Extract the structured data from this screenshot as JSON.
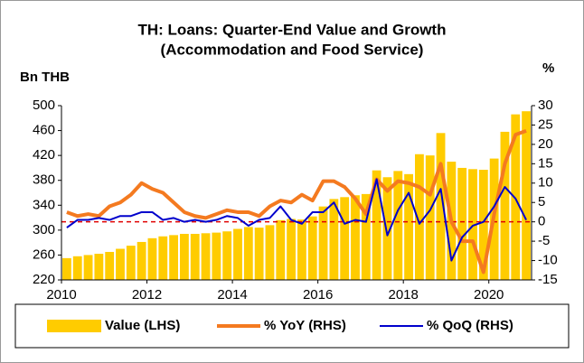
{
  "chart_data": {
    "type": "bar_line_combo",
    "title": [
      "TH: Loans: Quarter-End Value and Growth",
      "(Accommodation and Food Service)"
    ],
    "ylabel": "Bn THB",
    "y2label": "%",
    "x": [
      2010,
      2010.25,
      2010.5,
      2010.75,
      2011,
      2011.25,
      2011.5,
      2011.75,
      2012,
      2012.25,
      2012.5,
      2012.75,
      2013,
      2013.25,
      2013.5,
      2013.75,
      2014,
      2014.25,
      2014.5,
      2014.75,
      2015,
      2015.25,
      2015.5,
      2015.75,
      2016,
      2016.25,
      2016.5,
      2016.75,
      2017,
      2017.25,
      2017.5,
      2017.75,
      2018,
      2018.25,
      2018.5,
      2018.75,
      2019,
      2019.25,
      2019.5,
      2019.75,
      2020,
      2020.25,
      2020.5,
      2020.75
    ],
    "series": [
      {
        "name": "Value (LHS)",
        "kind": "bar",
        "axis": "y",
        "color": "#ffcc00",
        "values": [
          255,
          258,
          260,
          262,
          265,
          270,
          275,
          281,
          287,
          290,
          292,
          294,
          294,
          295,
          296,
          298,
          302,
          305,
          304,
          308,
          316,
          318,
          317,
          322,
          338,
          350,
          353,
          356,
          358,
          396,
          385,
          395,
          390,
          422,
          420,
          456,
          410,
          400,
          398,
          397,
          415,
          458,
          486,
          491
        ]
      },
      {
        "name": "% YoY (RHS)",
        "kind": "line",
        "axis": "y2",
        "color": "#f47a20",
        "values": [
          2.5,
          1.5,
          2,
          1.5,
          4,
          5,
          7,
          10,
          8.5,
          7.5,
          5,
          2.5,
          1.5,
          1,
          2,
          3,
          2.5,
          2.5,
          1.5,
          4,
          5.5,
          5,
          7,
          5.5,
          10.5,
          10.5,
          9,
          6,
          2,
          11,
          8,
          10.5,
          10,
          9,
          7,
          15,
          0,
          -5,
          -5,
          -13,
          2,
          15,
          22.5,
          23.5
        ]
      },
      {
        "name": "% QoQ (RHS)",
        "kind": "line",
        "axis": "y2",
        "color": "#0000cc",
        "values": [
          -1.5,
          0.5,
          0.5,
          1,
          0.5,
          1.5,
          1.5,
          2.5,
          2.5,
          0.5,
          1,
          0,
          0.5,
          0,
          0.5,
          1.5,
          1,
          -1,
          0.5,
          1,
          4,
          0.5,
          -0.5,
          2.5,
          2.5,
          5,
          -0.5,
          0.5,
          0,
          11,
          -3.5,
          3,
          7.5,
          -0.5,
          3,
          8.5,
          -10,
          -4,
          -1,
          0,
          4,
          9,
          6,
          0.5
        ]
      }
    ],
    "xlim": [
      2010,
      2021
    ],
    "xticks": [
      2010,
      2012,
      2014,
      2016,
      2018,
      2020
    ],
    "ylim": [
      220,
      500
    ],
    "yticks": [
      220,
      260,
      300,
      340,
      380,
      420,
      460,
      500
    ],
    "y2lim": [
      -15,
      30
    ],
    "y2ticks": [
      -15,
      -10,
      -5,
      0,
      5,
      10,
      15,
      20,
      25,
      30
    ],
    "y2_reference_line": {
      "value": 0,
      "color": "#e00000"
    },
    "legend": "bottom"
  }
}
